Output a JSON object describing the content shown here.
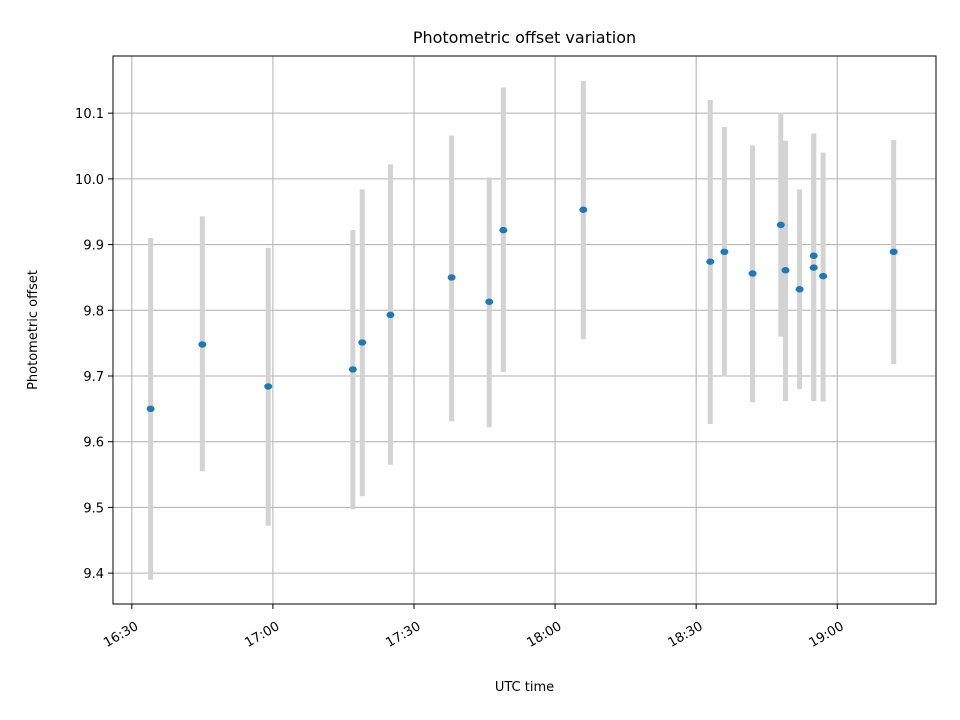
{
  "chart_data": {
    "type": "scatter",
    "title": "Photometric offset variation",
    "xlabel": "UTC time",
    "ylabel": "Photometric offset",
    "x_ticks": [
      "16:30",
      "17:00",
      "17:30",
      "18:00",
      "18:30",
      "19:00"
    ],
    "y_ticks": [
      "9.4",
      "9.5",
      "9.6",
      "9.7",
      "9.8",
      "9.9",
      "10.0",
      "10.1"
    ],
    "xlim": [
      "16:26",
      "19:21"
    ],
    "ylim": [
      9.353,
      10.187
    ],
    "grid": true,
    "series": [
      {
        "points": [
          {
            "x": "16:34",
            "y": 9.65,
            "err_low": 9.39,
            "err_high": 9.91
          },
          {
            "x": "16:45",
            "y": 9.748,
            "err_low": 9.555,
            "err_high": 9.943
          },
          {
            "x": "16:59",
            "y": 9.684,
            "err_low": 9.472,
            "err_high": 9.895
          },
          {
            "x": "17:17",
            "y": 9.71,
            "err_low": 9.497,
            "err_high": 9.922
          },
          {
            "x": "17:19",
            "y": 9.751,
            "err_low": 9.517,
            "err_high": 9.984
          },
          {
            "x": "17:25",
            "y": 9.793,
            "err_low": 9.565,
            "err_high": 10.022
          },
          {
            "x": "17:38",
            "y": 9.85,
            "err_low": 9.631,
            "err_high": 10.066
          },
          {
            "x": "17:46",
            "y": 9.813,
            "err_low": 9.622,
            "err_high": 10.002
          },
          {
            "x": "17:49",
            "y": 9.922,
            "err_low": 9.706,
            "err_high": 10.139
          },
          {
            "x": "18:06",
            "y": 9.953,
            "err_low": 9.756,
            "err_high": 10.149
          },
          {
            "x": "18:33",
            "y": 9.874,
            "err_low": 9.627,
            "err_high": 10.12
          },
          {
            "x": "18:36",
            "y": 9.889,
            "err_low": 9.699,
            "err_high": 10.079
          },
          {
            "x": "18:42",
            "y": 9.856,
            "err_low": 9.66,
            "err_high": 10.051
          },
          {
            "x": "18:48",
            "y": 9.93,
            "err_low": 9.76,
            "err_high": 10.101
          },
          {
            "x": "18:49",
            "y": 9.861,
            "err_low": 9.662,
            "err_high": 10.058
          },
          {
            "x": "18:52",
            "y": 9.832,
            "err_low": 9.68,
            "err_high": 9.984
          },
          {
            "x": "18:55",
            "y": 9.883,
            "err_low": 9.662,
            "err_high": 10.069
          },
          {
            "x": "18:55",
            "y": 9.865,
            "err_low": 9.662,
            "err_high": 10.066
          },
          {
            "x": "18:57",
            "y": 9.852,
            "err_low": 9.661,
            "err_high": 10.04
          },
          {
            "x": "19:12",
            "y": 9.889,
            "err_low": 9.718,
            "err_high": 10.059
          }
        ]
      }
    ]
  },
  "colors": {
    "marker": "#1f77b4",
    "errorbar": "#d3d3d3",
    "grid": "#b0b0b0",
    "axes": "#000000"
  }
}
